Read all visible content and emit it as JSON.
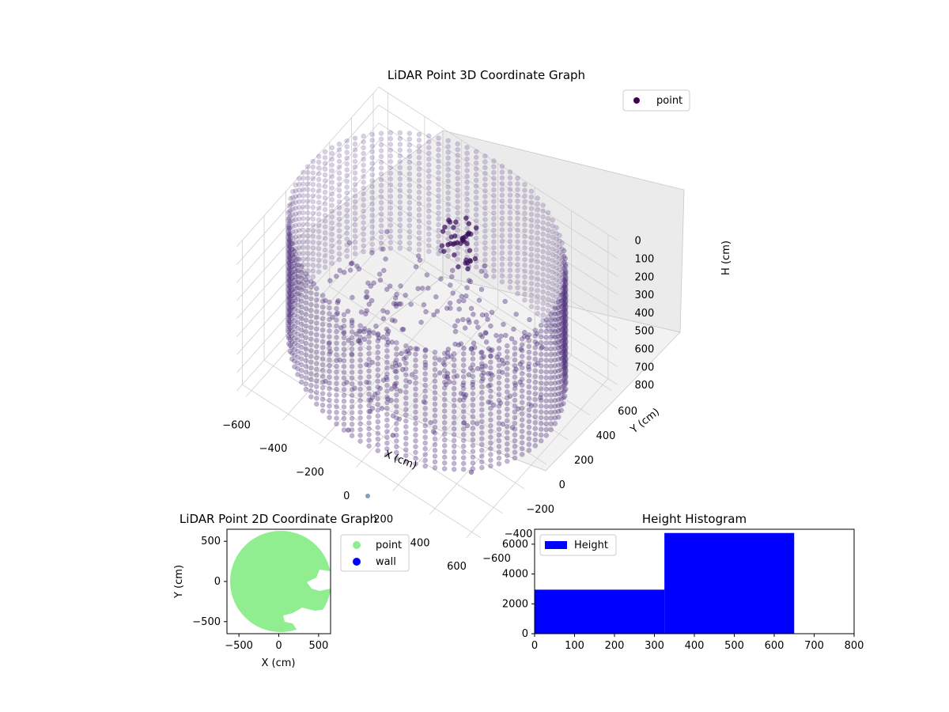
{
  "chart_data": [
    {
      "type": "scatter3d",
      "title": "LiDAR Point 3D Coordinate Graph",
      "xlabel": "X (cm)",
      "ylabel": "Y (cm)",
      "zlabel": "H (cm)",
      "xticks": [
        -600,
        -400,
        -200,
        0,
        200,
        400,
        600
      ],
      "yticks": [
        600,
        400,
        200,
        0,
        -200,
        -400,
        -600
      ],
      "zticks": [
        0,
        100,
        200,
        300,
        400,
        500,
        600,
        700,
        800
      ],
      "xlim": [
        -650,
        650
      ],
      "ylim": [
        -650,
        650
      ],
      "zlim": [
        0,
        800
      ],
      "z_inverted": true,
      "legend": {
        "entries": [
          "point"
        ],
        "placement": "top-right"
      },
      "series": [
        {
          "name": "point",
          "color": "#440154",
          "shape": "cylindrical wall of points, radius ~650 cm, height 0-650 cm, plus interior clusters",
          "radius": 650,
          "height_range": [
            0,
            650
          ]
        }
      ],
      "grid": true
    },
    {
      "type": "scatter",
      "title": "LiDAR Point 2D Coordinate Graph",
      "xlabel": "X (cm)",
      "ylabel": "Y (cm)",
      "xticks": [
        -500,
        0,
        500
      ],
      "yticks": [
        500,
        0,
        -500
      ],
      "xlim": [
        -650,
        650
      ],
      "ylim": [
        -650,
        650
      ],
      "legend": {
        "entries": [
          "point",
          "wall"
        ],
        "placement": "outside-right"
      },
      "series": [
        {
          "name": "point",
          "color": "#90ee90"
        },
        {
          "name": "wall",
          "color": "#0000ff"
        }
      ],
      "grid": false
    },
    {
      "type": "histogram",
      "title": "Height Histogram",
      "xticks": [
        0,
        100,
        200,
        300,
        400,
        500,
        600,
        700,
        800
      ],
      "yticks": [
        0,
        2000,
        4000,
        6000
      ],
      "xlim": [
        0,
        800
      ],
      "ylim": [
        0,
        7000
      ],
      "legend": {
        "entries": [
          "Height"
        ],
        "placement": "top-left"
      },
      "color": "#0000ff",
      "bins": [
        {
          "start": 0,
          "end": 325,
          "count": 2950
        },
        {
          "start": 325,
          "end": 650,
          "count": 6750
        },
        {
          "start": 650,
          "end": 800,
          "count": 0
        }
      ],
      "grid": false
    }
  ]
}
